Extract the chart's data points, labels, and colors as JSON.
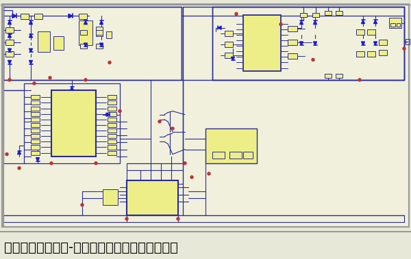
{
  "title": "新能源汽车逆变器-新能源汽车逆变器工作原理图",
  "bg_color": "#e8e8d8",
  "circuit_bg": "#f0f0dc",
  "border_color": "#888888",
  "line_color": "#2a2a99",
  "component_fill": "#eeee88",
  "component_stroke": "#2a2a99",
  "diode_color": "#1a1acc",
  "red_marker_color": "#bb3333",
  "title_color": "#000000",
  "title_fontsize": 14,
  "fig_width": 6.0,
  "fig_height": 3.79,
  "dpi": 100
}
